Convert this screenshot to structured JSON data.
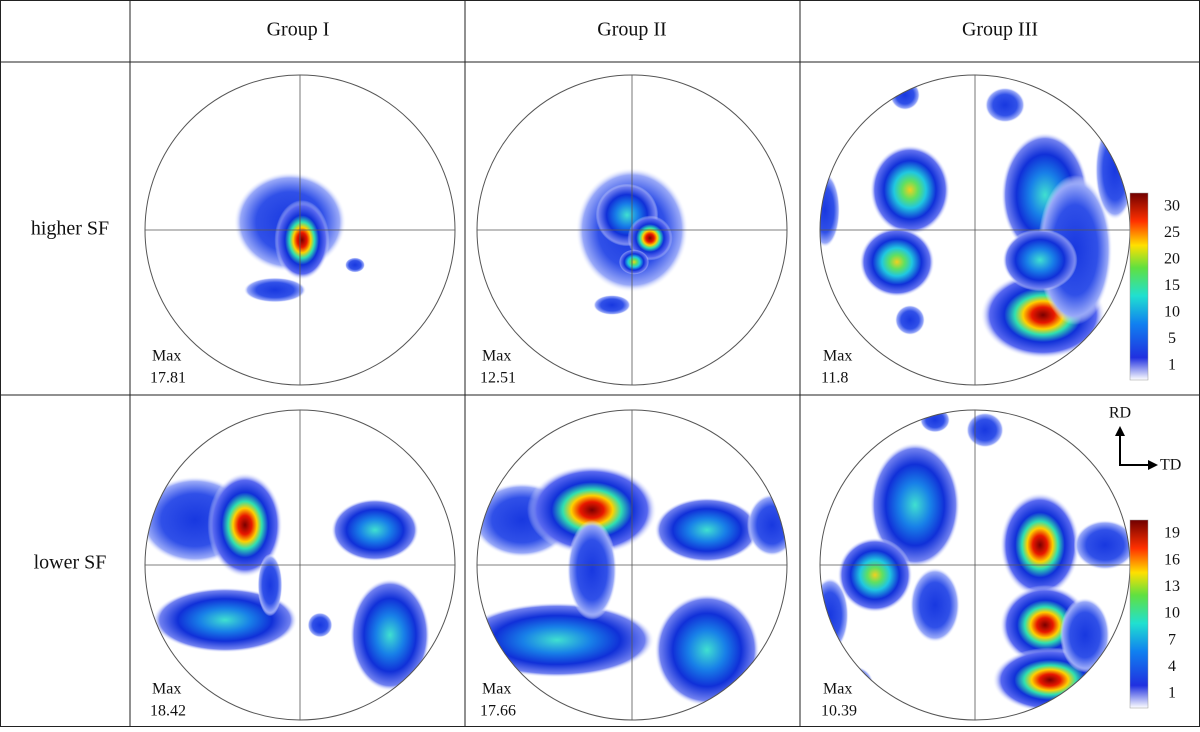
{
  "header": {
    "columns": [
      "Group I",
      "Group II",
      "Group III"
    ]
  },
  "rows": [
    {
      "label": "higher SF",
      "cells": [
        {
          "max_label": "Max",
          "max_value": 17.81
        },
        {
          "max_label": "Max",
          "max_value": 12.51
        },
        {
          "max_label": "Max",
          "max_value": 11.8
        }
      ]
    },
    {
      "label": "lower SF",
      "cells": [
        {
          "max_label": "Max",
          "max_value": 18.42
        },
        {
          "max_label": "Max",
          "max_value": 17.66
        },
        {
          "max_label": "Max",
          "max_value": 10.39
        }
      ]
    }
  ],
  "colorbars": [
    {
      "ticks": [
        30,
        25,
        20,
        15,
        10,
        5,
        1
      ]
    },
    {
      "ticks": [
        19,
        16,
        13,
        10,
        7,
        4,
        1
      ]
    }
  ],
  "axes": {
    "vertical": "RD",
    "horizontal": "TD"
  }
}
